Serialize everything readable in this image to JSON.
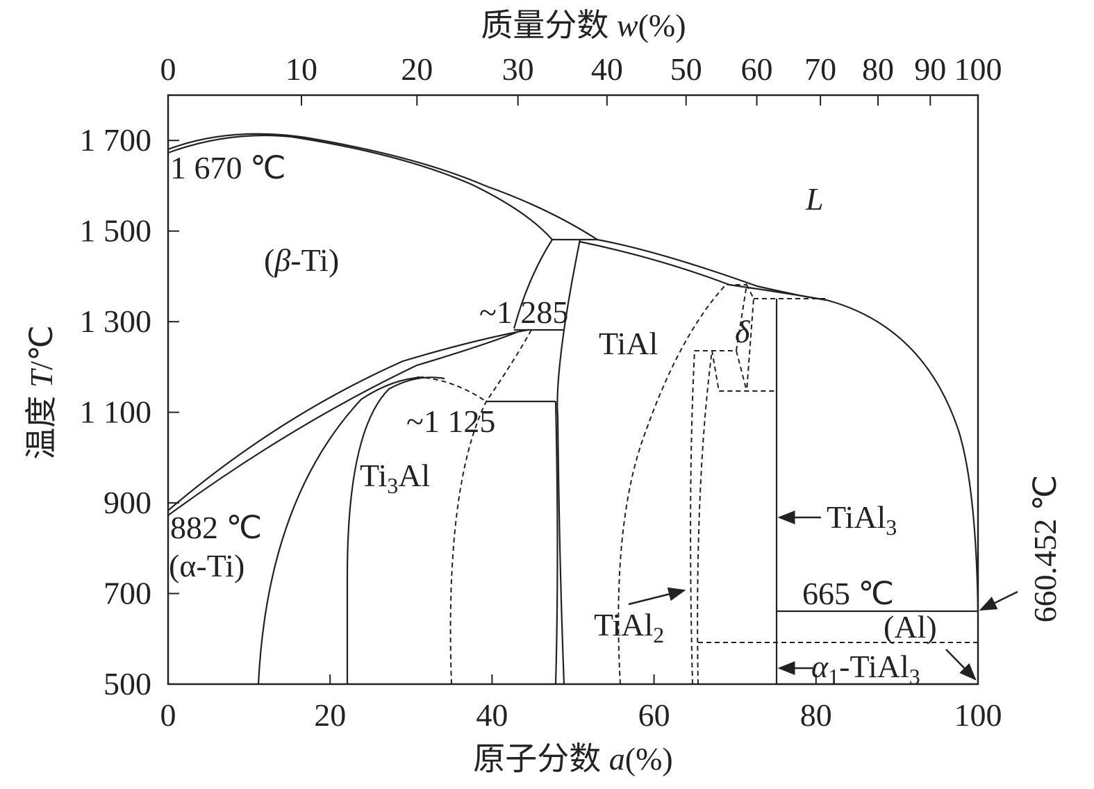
{
  "top_axis": {
    "title": [
      "质量分数 ",
      "w",
      "(%)"
    ],
    "ticks": [
      0,
      10,
      20,
      30,
      40,
      50,
      60,
      70,
      80,
      90,
      100
    ]
  },
  "bottom_axis": {
    "title": [
      "原子分数 ",
      "a",
      "(%)"
    ],
    "lim": [
      0,
      100
    ],
    "ticks": [
      0,
      20,
      40,
      60,
      80,
      100
    ]
  },
  "left_axis": {
    "title": [
      "温度 ",
      "T",
      "/℃"
    ],
    "lim": [
      500,
      1800
    ],
    "ticks": [
      500,
      700,
      900,
      {
        "value": 1100,
        "label": "1 100"
      },
      {
        "value": 1300,
        "label": "1 300"
      },
      {
        "value": 1500,
        "label": "1 500"
      },
      {
        "value": 1700,
        "label": "1 700"
      }
    ]
  },
  "annotations": [
    [
      "1 670 ℃"
    ],
    [
      "(",
      "β",
      "-Ti)"
    ],
    [
      "~1 285"
    ],
    [
      "~1 125"
    ],
    [
      "Ti",
      "3",
      "Al"
    ],
    [
      "TiAl"
    ],
    [
      "δ"
    ],
    [
      "L"
    ],
    [
      "882 ℃"
    ],
    [
      "(α-Ti)"
    ],
    [
      "TiAl",
      "3"
    ],
    [
      "665 ℃"
    ],
    [
      "(Al)"
    ],
    [
      "TiAl",
      "2"
    ],
    [
      "α",
      "1",
      "-TiAl",
      "3"
    ],
    [
      "660.452 ℃"
    ]
  ]
}
